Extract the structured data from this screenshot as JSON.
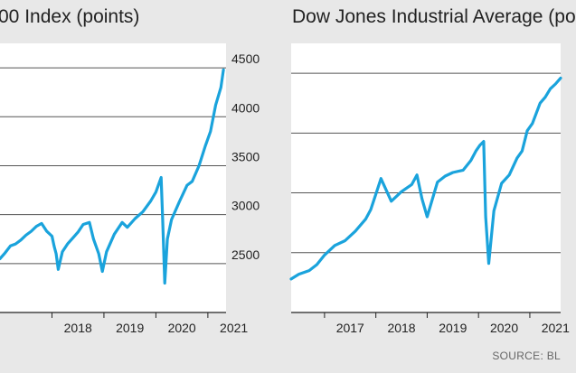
{
  "titles": {
    "left": "00 Index (points)",
    "right": "Dow Jones Industrial Average (po"
  },
  "source": "SOURCE: BL",
  "colors": {
    "line": "#1aa3dc",
    "axis": "#222222",
    "grid": "#555555",
    "plot_background": "#ffffff",
    "page_background": "#e8e8e8"
  },
  "chart_data": [
    {
      "type": "area",
      "title": "00 Index (points)",
      "xlabel": "",
      "ylabel": "",
      "xlim": [
        2017.0,
        2021.35
      ],
      "ylim": [
        2000,
        4750
      ],
      "yticks": [
        2500,
        3000,
        3500,
        4000,
        4500
      ],
      "ytick_labels": [
        "2500",
        "3000",
        "3500",
        "4000",
        "4500"
      ],
      "ytick_side": "right",
      "xticks": [
        2018,
        2019,
        2020,
        2021
      ],
      "xtick_labels": [
        "2018",
        "2019",
        "2020",
        "2021"
      ],
      "grid": true,
      "series": [
        {
          "x": [
            2017.0,
            2017.1,
            2017.2,
            2017.3,
            2017.4,
            2017.5,
            2017.6,
            2017.7,
            2017.8,
            2017.9,
            2018.0,
            2018.04,
            2018.08,
            2018.12,
            2018.2,
            2018.3,
            2018.4,
            2018.5,
            2018.6,
            2018.72,
            2018.8,
            2018.9,
            2018.97,
            2019.05,
            2019.2,
            2019.35,
            2019.45,
            2019.6,
            2019.75,
            2019.9,
            2020.0,
            2020.1,
            2020.13,
            2020.17,
            2020.22,
            2020.3,
            2020.45,
            2020.6,
            2020.7,
            2020.83,
            2020.95,
            2021.05,
            2021.15,
            2021.25,
            2021.3
          ],
          "y": [
            2550,
            2610,
            2680,
            2700,
            2740,
            2790,
            2830,
            2880,
            2910,
            2830,
            2780,
            2680,
            2600,
            2440,
            2620,
            2700,
            2760,
            2820,
            2900,
            2920,
            2750,
            2600,
            2420,
            2620,
            2800,
            2920,
            2870,
            2960,
            3030,
            3140,
            3230,
            3380,
            2950,
            2300,
            2750,
            2950,
            3130,
            3300,
            3340,
            3500,
            3700,
            3850,
            4120,
            4300,
            4480
          ]
        }
      ]
    },
    {
      "type": "area",
      "title": "Dow Jones Industrial Average (po",
      "xlabel": "",
      "ylabel": "",
      "xlim": [
        2016.35,
        2021.6
      ],
      "ylim": [
        15000,
        37500
      ],
      "yticks": [
        20000,
        25000,
        30000,
        35000
      ],
      "ytick_labels": [],
      "grid": true,
      "xticks": [
        2017,
        2018,
        2019,
        2020,
        2021
      ],
      "xtick_labels": [
        "2017",
        "2018",
        "2019",
        "2020",
        "2021"
      ],
      "series": [
        {
          "x": [
            2016.35,
            2016.5,
            2016.7,
            2016.85,
            2017.0,
            2017.2,
            2017.4,
            2017.6,
            2017.8,
            2017.9,
            2018.0,
            2018.1,
            2018.3,
            2018.5,
            2018.7,
            2018.8,
            2018.9,
            2019.0,
            2019.2,
            2019.35,
            2019.5,
            2019.7,
            2019.85,
            2019.95,
            2020.03,
            2020.1,
            2020.14,
            2020.2,
            2020.3,
            2020.45,
            2020.6,
            2020.75,
            2020.85,
            2020.95,
            2021.05,
            2021.2,
            2021.3,
            2021.4,
            2021.5,
            2021.6
          ],
          "y": [
            17800,
            18200,
            18500,
            19000,
            19800,
            20600,
            21000,
            21800,
            22800,
            23600,
            24900,
            26200,
            24300,
            25100,
            25700,
            26500,
            24500,
            23000,
            25900,
            26400,
            26700,
            26900,
            27700,
            28500,
            29000,
            29300,
            23000,
            19100,
            23500,
            25800,
            26500,
            27900,
            28500,
            30200,
            30800,
            32500,
            33000,
            33700,
            34100,
            34600
          ]
        }
      ]
    }
  ]
}
